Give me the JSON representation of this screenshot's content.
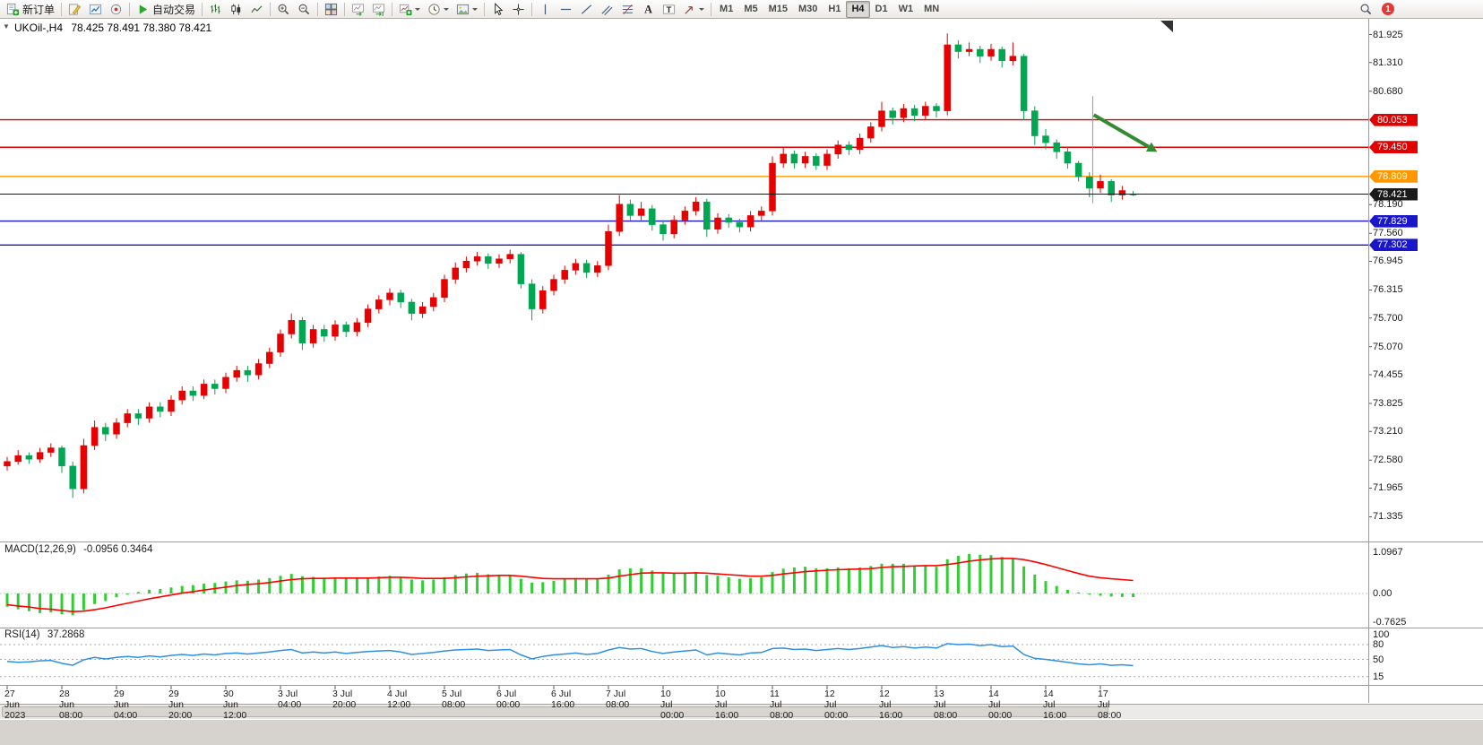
{
  "toolbar": {
    "groups": [
      {
        "items": [
          {
            "name": "new-order-button",
            "icon": "new-order-icon",
            "label": "新订单"
          }
        ]
      },
      {
        "items": [
          {
            "name": "metaeditor-button",
            "icon": "editor-icon"
          },
          {
            "name": "market-watch-button",
            "icon": "market-watch-icon"
          },
          {
            "name": "data-window-button",
            "icon": "data-window-icon"
          }
        ]
      },
      {
        "items": [
          {
            "name": "autotrading-button",
            "icon": "play-icon",
            "label": "自动交易"
          }
        ]
      },
      {
        "items": [
          {
            "name": "bar-chart-button",
            "icon": "ohlc-bars-icon"
          },
          {
            "name": "candlestick-chart-button",
            "icon": "candles-icon"
          },
          {
            "name": "line-chart-button",
            "icon": "line-chart-icon"
          }
        ]
      },
      {
        "items": [
          {
            "name": "zoom-in-button",
            "icon": "zoom-in-icon"
          },
          {
            "name": "zoom-out-button",
            "icon": "zoom-out-icon"
          }
        ]
      },
      {
        "items": [
          {
            "name": "tile-windows-button",
            "icon": "tile-windows-icon"
          }
        ]
      },
      {
        "items": [
          {
            "name": "auto-scroll-button",
            "icon": "autoscroll-icon"
          },
          {
            "name": "chart-shift-button",
            "icon": "shift-icon"
          }
        ]
      },
      {
        "items": [
          {
            "name": "new-chart-button",
            "icon": "new-chart-icon",
            "dropdown": true
          },
          {
            "name": "periods-button",
            "icon": "period-icon",
            "dropdown": true
          },
          {
            "name": "templates-button",
            "icon": "template-icon",
            "dropdown": true
          }
        ]
      },
      {
        "items": [
          {
            "name": "cursor-tool-button",
            "icon": "cursor-icon"
          },
          {
            "name": "crosshair-tool-button",
            "icon": "crosshair-icon"
          }
        ]
      },
      {
        "items": [
          {
            "name": "vertical-line-tool-button",
            "icon": "vline-icon"
          },
          {
            "name": "horizontal-line-tool-button",
            "icon": "hline-icon"
          },
          {
            "name": "trendline-tool-button",
            "icon": "trendline-icon"
          },
          {
            "name": "channel-tool-button",
            "icon": "channel-icon"
          },
          {
            "name": "fibonacci-tool-button",
            "icon": "fibo-icon"
          },
          {
            "name": "text-tool-button",
            "icon": "text-icon"
          },
          {
            "name": "label-tool-button",
            "icon": "label-icon"
          },
          {
            "name": "arrows-tool-button",
            "icon": "arrows-icon",
            "dropdown": true
          }
        ]
      }
    ],
    "timeframes": [
      "M1",
      "M5",
      "M15",
      "M30",
      "H1",
      "H4",
      "D1",
      "W1",
      "MN"
    ],
    "active_timeframe": "H4",
    "badge_count": "1"
  },
  "chart": {
    "collapse_glyph": "▼",
    "symbol_period": "UKOil-,H4",
    "ohlc_text": "78.425 78.491 78.380 78.421"
  },
  "colors": {
    "bull": "#e60000",
    "bear": "#00a651",
    "macd_histogram": "#32cd32",
    "macd_signal": "#ff0000",
    "rsi_line": "#2e90e0",
    "level_red": "#e00000",
    "level_orange": "#ff9800",
    "level_blue": "#1a17c9",
    "current_price": "#1a1a1a",
    "arrow_green": "#338a33"
  },
  "chart_data": {
    "type": "candlestick",
    "title": "UKOil-,H4",
    "ylim": [
      70.95,
      82.25
    ],
    "price_axis_ticks": [
      "81.925",
      "81.310",
      "80.680",
      "78.190",
      "77.560",
      "76.945",
      "76.315",
      "75.700",
      "75.070",
      "74.455",
      "73.825",
      "73.210",
      "72.580",
      "71.965",
      "71.335"
    ],
    "time_labels": [
      "27 Jun 2023",
      "28 Jun 08:00",
      "29 Jun 04:00",
      "29 Jun 20:00",
      "30 Jun 12:00",
      "3 Jul 04:00",
      "3 Jul 20:00",
      "4 Jul 12:00",
      "5 Jul 08:00",
      "6 Jul 00:00",
      "6 Jul 16:00",
      "7 Jul 08:00",
      "10 Jul 00:00",
      "10 Jul 16:00",
      "11 Jul 08:00",
      "12 Jul 00:00",
      "12 Jul 16:00",
      "13 Jul 08:00",
      "14 Jul 00:00",
      "14 Jul 16:00",
      "17 Jul 08:00"
    ],
    "candles": [
      [
        72.45,
        72.65,
        72.35,
        72.55
      ],
      [
        72.55,
        72.8,
        72.48,
        72.68
      ],
      [
        72.68,
        72.75,
        72.5,
        72.6
      ],
      [
        72.6,
        72.85,
        72.52,
        72.75
      ],
      [
        72.75,
        72.95,
        72.65,
        72.85
      ],
      [
        72.85,
        72.9,
        72.3,
        72.45
      ],
      [
        72.45,
        72.55,
        71.75,
        71.95
      ],
      [
        71.95,
        73.05,
        71.85,
        72.9
      ],
      [
        72.9,
        73.45,
        72.8,
        73.3
      ],
      [
        73.3,
        73.4,
        73.0,
        73.15
      ],
      [
        73.15,
        73.5,
        73.05,
        73.4
      ],
      [
        73.4,
        73.7,
        73.3,
        73.6
      ],
      [
        73.6,
        73.7,
        73.35,
        73.5
      ],
      [
        73.5,
        73.85,
        73.4,
        73.75
      ],
      [
        73.75,
        73.85,
        73.52,
        73.65
      ],
      [
        73.65,
        74.0,
        73.55,
        73.9
      ],
      [
        73.9,
        74.2,
        73.8,
        74.1
      ],
      [
        74.1,
        74.2,
        73.88,
        74.0
      ],
      [
        74.0,
        74.35,
        73.92,
        74.25
      ],
      [
        74.25,
        74.35,
        74.02,
        74.15
      ],
      [
        74.15,
        74.5,
        74.05,
        74.4
      ],
      [
        74.4,
        74.65,
        74.3,
        74.55
      ],
      [
        74.55,
        74.65,
        74.3,
        74.45
      ],
      [
        74.45,
        74.8,
        74.35,
        74.7
      ],
      [
        74.7,
        75.05,
        74.6,
        74.95
      ],
      [
        74.95,
        75.45,
        74.85,
        75.35
      ],
      [
        75.35,
        75.8,
        75.25,
        75.65
      ],
      [
        75.65,
        75.72,
        75.0,
        75.15
      ],
      [
        75.15,
        75.55,
        75.05,
        75.45
      ],
      [
        75.45,
        75.55,
        75.18,
        75.3
      ],
      [
        75.3,
        75.65,
        75.2,
        75.55
      ],
      [
        75.55,
        75.62,
        75.28,
        75.4
      ],
      [
        75.4,
        75.7,
        75.3,
        75.6
      ],
      [
        75.6,
        76.0,
        75.5,
        75.9
      ],
      [
        75.9,
        76.2,
        75.8,
        76.1
      ],
      [
        76.1,
        76.35,
        75.98,
        76.25
      ],
      [
        76.25,
        76.32,
        75.92,
        76.05
      ],
      [
        76.05,
        76.12,
        75.65,
        75.8
      ],
      [
        75.8,
        76.05,
        75.7,
        75.95
      ],
      [
        75.95,
        76.25,
        75.85,
        76.15
      ],
      [
        76.15,
        76.65,
        76.05,
        76.55
      ],
      [
        76.55,
        76.92,
        76.45,
        76.8
      ],
      [
        76.8,
        77.05,
        76.7,
        76.95
      ],
      [
        76.95,
        77.15,
        76.85,
        77.05
      ],
      [
        77.05,
        77.12,
        76.78,
        76.9
      ],
      [
        76.9,
        77.1,
        76.8,
        77.0
      ],
      [
        77.0,
        77.2,
        76.9,
        77.1
      ],
      [
        77.1,
        77.15,
        76.35,
        76.45
      ],
      [
        76.45,
        76.55,
        75.65,
        75.9
      ],
      [
        75.9,
        76.4,
        75.8,
        76.3
      ],
      [
        76.3,
        76.65,
        76.2,
        76.55
      ],
      [
        76.55,
        76.85,
        76.45,
        76.75
      ],
      [
        76.75,
        77.0,
        76.65,
        76.9
      ],
      [
        76.9,
        76.98,
        76.58,
        76.7
      ],
      [
        76.7,
        76.95,
        76.6,
        76.85
      ],
      [
        76.85,
        77.75,
        76.75,
        77.6
      ],
      [
        77.6,
        78.4,
        77.5,
        78.2
      ],
      [
        78.2,
        78.3,
        77.85,
        77.95
      ],
      [
        77.95,
        78.25,
        77.85,
        78.1
      ],
      [
        78.1,
        78.18,
        77.62,
        77.75
      ],
      [
        77.75,
        77.85,
        77.4,
        77.55
      ],
      [
        77.55,
        77.95,
        77.45,
        77.85
      ],
      [
        77.85,
        78.15,
        77.75,
        78.05
      ],
      [
        78.05,
        78.35,
        77.95,
        78.25
      ],
      [
        78.25,
        78.32,
        77.48,
        77.65
      ],
      [
        77.65,
        78.0,
        77.55,
        77.9
      ],
      [
        77.9,
        77.98,
        77.68,
        77.8
      ],
      [
        77.8,
        77.88,
        77.58,
        77.7
      ],
      [
        77.7,
        78.05,
        77.6,
        77.95
      ],
      [
        77.95,
        78.15,
        77.85,
        78.05
      ],
      [
        78.05,
        79.25,
        77.95,
        79.1
      ],
      [
        79.1,
        79.45,
        79.0,
        79.3
      ],
      [
        79.3,
        79.38,
        78.98,
        79.1
      ],
      [
        79.1,
        79.35,
        79.0,
        79.25
      ],
      [
        79.25,
        79.32,
        78.95,
        79.05
      ],
      [
        79.05,
        79.4,
        78.95,
        79.3
      ],
      [
        79.3,
        79.6,
        79.2,
        79.5
      ],
      [
        79.5,
        79.58,
        79.28,
        79.4
      ],
      [
        79.4,
        79.75,
        79.3,
        79.65
      ],
      [
        79.65,
        80.0,
        79.55,
        79.9
      ],
      [
        79.9,
        80.45,
        79.8,
        80.25
      ],
      [
        80.25,
        80.32,
        79.95,
        80.1
      ],
      [
        80.1,
        80.4,
        80.0,
        80.3
      ],
      [
        80.3,
        80.38,
        80.02,
        80.15
      ],
      [
        80.15,
        80.45,
        80.05,
        80.35
      ],
      [
        80.35,
        80.42,
        80.1,
        80.25
      ],
      [
        80.25,
        81.95,
        80.15,
        81.7
      ],
      [
        81.7,
        81.8,
        81.4,
        81.55
      ],
      [
        81.55,
        81.75,
        81.45,
        81.6
      ],
      [
        81.6,
        81.68,
        81.3,
        81.45
      ],
      [
        81.45,
        81.72,
        81.35,
        81.6
      ],
      [
        81.6,
        81.66,
        81.2,
        81.35
      ],
      [
        81.35,
        81.75,
        81.25,
        81.45
      ],
      [
        81.45,
        81.5,
        80.05,
        80.25
      ],
      [
        80.25,
        80.35,
        79.5,
        79.7
      ],
      [
        79.7,
        79.85,
        79.4,
        79.55
      ],
      [
        79.55,
        79.62,
        79.2,
        79.35
      ],
      [
        79.35,
        79.45,
        78.98,
        79.1
      ],
      [
        79.1,
        79.15,
        78.7,
        78.8
      ],
      [
        78.8,
        78.9,
        78.35,
        78.55
      ],
      [
        78.55,
        78.85,
        78.45,
        78.7
      ],
      [
        78.7,
        78.75,
        78.25,
        78.4
      ],
      [
        78.4,
        78.6,
        78.3,
        78.5
      ],
      [
        78.425,
        78.491,
        78.38,
        78.421
      ]
    ],
    "price_lines": [
      {
        "label": "80.053",
        "price": 80.053,
        "color_key": "level_red"
      },
      {
        "label": "79.450",
        "price": 79.45,
        "color_key": "level_red"
      },
      {
        "label": "78.809",
        "price": 78.809,
        "color_key": "level_orange"
      },
      {
        "label": "78.421",
        "price": 78.421,
        "color_key": "current_price"
      },
      {
        "label": "77.829",
        "price": 77.829,
        "color_key": "level_blue"
      },
      {
        "label": "77.302",
        "price": 77.302,
        "color_key": "level_blue"
      }
    ],
    "indicators": {
      "macd": {
        "label": "MACD(12,26,9)",
        "values_text": "-0.0956 0.3464",
        "axis_ticks": [
          "1.0967",
          "0.00",
          "-0.7625"
        ],
        "histogram": [
          -0.35,
          -0.42,
          -0.47,
          -0.52,
          -0.5,
          -0.55,
          -0.58,
          -0.44,
          -0.28,
          -0.2,
          -0.1,
          -0.03,
          0.04,
          0.1,
          0.12,
          0.16,
          0.2,
          0.22,
          0.26,
          0.28,
          0.32,
          0.35,
          0.34,
          0.37,
          0.41,
          0.47,
          0.52,
          0.46,
          0.44,
          0.42,
          0.42,
          0.4,
          0.4,
          0.43,
          0.45,
          0.47,
          0.43,
          0.37,
          0.35,
          0.37,
          0.43,
          0.49,
          0.53,
          0.55,
          0.51,
          0.49,
          0.49,
          0.39,
          0.29,
          0.3,
          0.34,
          0.38,
          0.41,
          0.39,
          0.39,
          0.5,
          0.64,
          0.67,
          0.67,
          0.61,
          0.54,
          0.53,
          0.55,
          0.57,
          0.49,
          0.47,
          0.43,
          0.39,
          0.41,
          0.43,
          0.57,
          0.66,
          0.69,
          0.71,
          0.67,
          0.67,
          0.69,
          0.67,
          0.69,
          0.73,
          0.79,
          0.79,
          0.79,
          0.75,
          0.75,
          0.71,
          0.91,
          1.0,
          1.05,
          1.03,
          1.02,
          0.97,
          0.94,
          0.72,
          0.5,
          0.33,
          0.2,
          0.1,
          0.03,
          -0.03,
          -0.06,
          -0.08,
          -0.09,
          -0.0956
        ],
        "signal": [
          -0.3,
          -0.33,
          -0.36,
          -0.4,
          -0.42,
          -0.45,
          -0.48,
          -0.47,
          -0.43,
          -0.38,
          -0.32,
          -0.26,
          -0.2,
          -0.14,
          -0.09,
          -0.04,
          0.01,
          0.05,
          0.09,
          0.13,
          0.17,
          0.21,
          0.24,
          0.26,
          0.29,
          0.33,
          0.37,
          0.39,
          0.4,
          0.4,
          0.41,
          0.41,
          0.41,
          0.41,
          0.42,
          0.43,
          0.43,
          0.42,
          0.4,
          0.4,
          0.4,
          0.42,
          0.44,
          0.46,
          0.47,
          0.48,
          0.48,
          0.46,
          0.43,
          0.4,
          0.39,
          0.39,
          0.39,
          0.39,
          0.39,
          0.41,
          0.46,
          0.5,
          0.54,
          0.55,
          0.55,
          0.54,
          0.54,
          0.55,
          0.54,
          0.52,
          0.5,
          0.48,
          0.46,
          0.46,
          0.48,
          0.52,
          0.55,
          0.58,
          0.6,
          0.62,
          0.63,
          0.64,
          0.65,
          0.66,
          0.69,
          0.71,
          0.72,
          0.73,
          0.74,
          0.74,
          0.77,
          0.81,
          0.86,
          0.89,
          0.92,
          0.93,
          0.93,
          0.9,
          0.84,
          0.77,
          0.69,
          0.61,
          0.53,
          0.46,
          0.42,
          0.39,
          0.37,
          0.3464
        ]
      },
      "rsi": {
        "label": "RSI(14)",
        "value_text": "37.2868",
        "axis_ticks": [
          "100",
          "80",
          "50",
          "15"
        ],
        "levels": [
          80,
          50,
          15
        ],
        "values": [
          46,
          44,
          45,
          47,
          48,
          42,
          38,
          49,
          54,
          51,
          54,
          56,
          54,
          57,
          55,
          58,
          60,
          58,
          61,
          59,
          62,
          63,
          61,
          63,
          65,
          68,
          70,
          63,
          65,
          63,
          65,
          62,
          64,
          66,
          67,
          68,
          65,
          60,
          62,
          64,
          67,
          69,
          70,
          71,
          68,
          69,
          70,
          59,
          51,
          56,
          59,
          61,
          63,
          60,
          62,
          69,
          74,
          71,
          72,
          66,
          62,
          65,
          67,
          69,
          59,
          63,
          61,
          59,
          63,
          64,
          72,
          73,
          70,
          71,
          68,
          70,
          72,
          70,
          72,
          75,
          78,
          74,
          76,
          73,
          75,
          73,
          82,
          80,
          81,
          78,
          80,
          76,
          77,
          60,
          52,
          50,
          47,
          44,
          41,
          39,
          41,
          38,
          39,
          37.2868
        ]
      }
    },
    "annotations": {
      "trend_arrow": {
        "from_index": 99.4,
        "from_price": 80.16,
        "to_index": 105.2,
        "to_price": 79.35
      },
      "vertical_mark": {
        "index": 99.3,
        "from_price": 80.57,
        "to_price": 78.22
      }
    }
  }
}
